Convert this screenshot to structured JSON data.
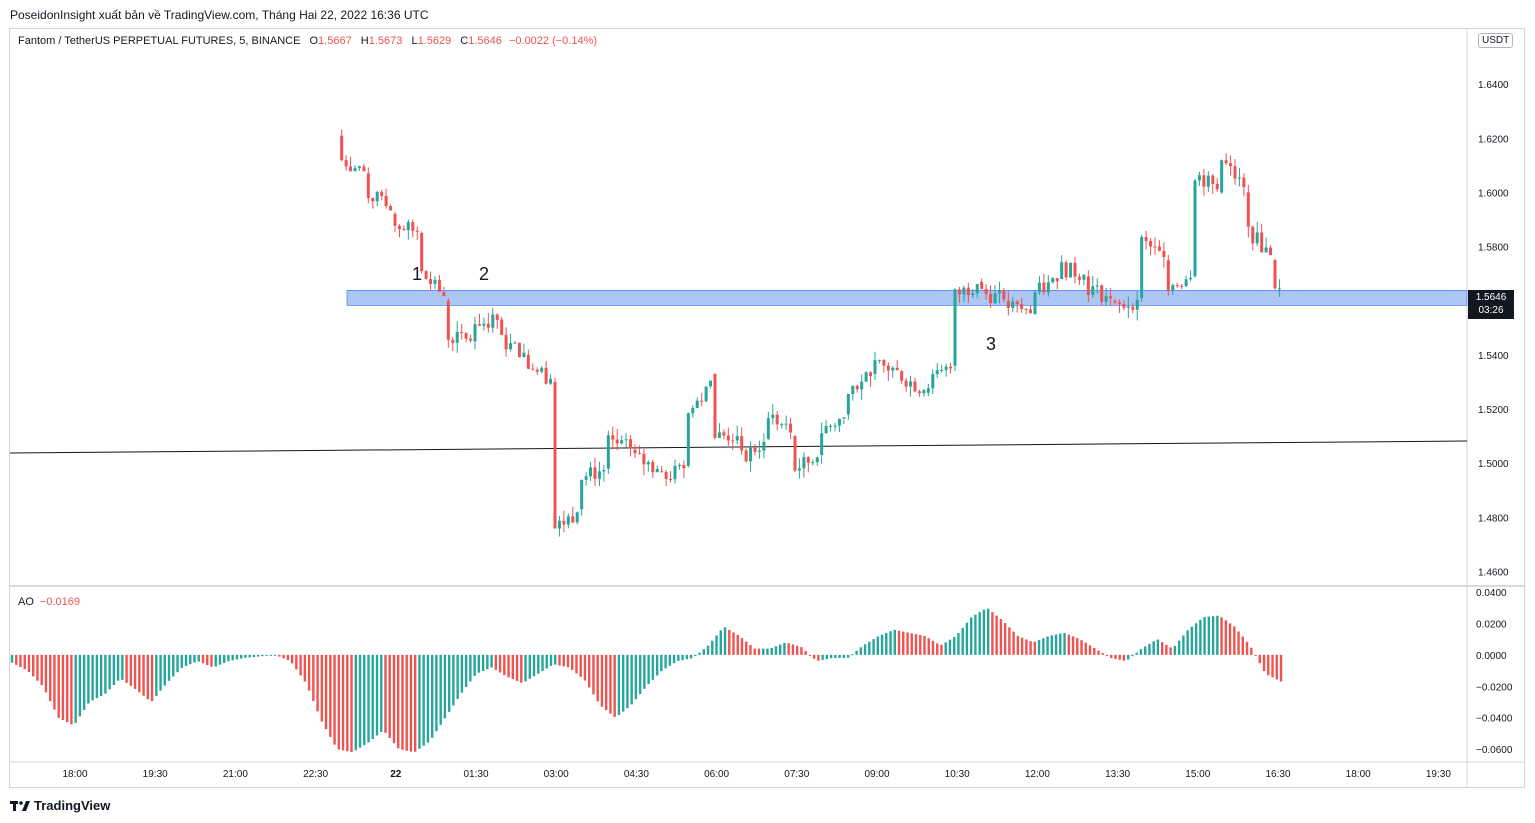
{
  "header": {
    "publisher_line": "PoseidonInsight xuất bản về TradingView.com, Tháng Hai 22, 2022 16:36 UTC"
  },
  "legend": {
    "symbol": "Fantom / TetherUS PERPETUAL FUTURES, 5, BINANCE",
    "open_label": "O",
    "open": "1.5667",
    "high_label": "H",
    "high": "1.5673",
    "low_label": "L",
    "low": "1.5629",
    "close_label": "C",
    "close": "1.5646",
    "change": "−0.0022 (−0.14%)"
  },
  "price_axis": {
    "unit": "USDT",
    "current_price": "1.5646",
    "countdown": "03:26"
  },
  "annotations": [
    "1",
    "2",
    "3"
  ],
  "indicator": {
    "name": "AO",
    "value": "−0.0169"
  },
  "branding": {
    "logo_text": "TradingView"
  },
  "colors": {
    "up": "#26a69a",
    "down": "#ef5350",
    "zone_fill": "#90b4f0",
    "zone_border": "#2962ff",
    "trendline": "#131722"
  },
  "chart_data": [
    {
      "type": "candlestick",
      "title": "Fantom / TetherUS PERPETUAL FUTURES, 5, BINANCE",
      "x_ticks": [
        "18:00",
        "19:30",
        "21:00",
        "22:30",
        "22",
        "01:30",
        "03:00",
        "04:30",
        "06:00",
        "07:30",
        "09:00",
        "10:30",
        "12:00",
        "13:30",
        "15:00",
        "16:30",
        "18:00",
        "19:30"
      ],
      "y_ticks": [
        "1.6400",
        "1.6200",
        "1.6000",
        "1.5800",
        "1.5600",
        "1.5400",
        "1.5200",
        "1.5000",
        "1.4800",
        "1.4600"
      ],
      "ylim": [
        1.455,
        1.66
      ],
      "series": [
        {
          "values": [
            {
              "t": "23:00",
              "o": 1.621,
              "h": 1.64,
              "l": 1.61,
              "c": 1.612
            },
            {
              "t": "23:30",
              "o": 1.607,
              "h": 1.612,
              "l": 1.596,
              "c": 1.6
            },
            {
              "t": "00:00",
              "o": 1.592,
              "h": 1.596,
              "l": 1.581,
              "c": 1.588
            },
            {
              "t": "00:30",
              "o": 1.585,
              "h": 1.59,
              "l": 1.566,
              "c": 1.57
            },
            {
              "t": "01:00",
              "o": 1.56,
              "h": 1.566,
              "l": 1.537,
              "c": 1.547
            },
            {
              "t": "01:30",
              "o": 1.545,
              "h": 1.562,
              "l": 1.536,
              "c": 1.552
            },
            {
              "t": "02:00",
              "o": 1.553,
              "h": 1.563,
              "l": 1.541,
              "c": 1.545
            },
            {
              "t": "02:30",
              "o": 1.54,
              "h": 1.556,
              "l": 1.523,
              "c": 1.537
            },
            {
              "t": "03:00",
              "o": 1.53,
              "h": 1.533,
              "l": 1.473,
              "c": 1.476
            },
            {
              "t": "03:30",
              "o": 1.483,
              "h": 1.5,
              "l": 1.479,
              "c": 1.495
            },
            {
              "t": "04:00",
              "o": 1.498,
              "h": 1.512,
              "l": 1.49,
              "c": 1.508
            },
            {
              "t": "04:30",
              "o": 1.505,
              "h": 1.51,
              "l": 1.493,
              "c": 1.502
            },
            {
              "t": "05:00",
              "o": 1.497,
              "h": 1.504,
              "l": 1.489,
              "c": 1.494
            },
            {
              "t": "05:30",
              "o": 1.499,
              "h": 1.526,
              "l": 1.497,
              "c": 1.518
            },
            {
              "t": "06:00",
              "o": 1.533,
              "h": 1.54,
              "l": 1.505,
              "c": 1.51
            },
            {
              "t": "06:30",
              "o": 1.51,
              "h": 1.522,
              "l": 1.497,
              "c": 1.502
            },
            {
              "t": "07:00",
              "o": 1.509,
              "h": 1.522,
              "l": 1.506,
              "c": 1.518
            },
            {
              "t": "07:30",
              "o": 1.51,
              "h": 1.516,
              "l": 1.495,
              "c": 1.498
            },
            {
              "t": "08:00",
              "o": 1.503,
              "h": 1.514,
              "l": 1.5,
              "c": 1.512
            },
            {
              "t": "08:30",
              "o": 1.518,
              "h": 1.532,
              "l": 1.514,
              "c": 1.528
            },
            {
              "t": "09:00",
              "o": 1.533,
              "h": 1.544,
              "l": 1.528,
              "c": 1.536
            },
            {
              "t": "09:30",
              "o": 1.534,
              "h": 1.541,
              "l": 1.525,
              "c": 1.532
            },
            {
              "t": "10:00",
              "o": 1.526,
              "h": 1.535,
              "l": 1.518,
              "c": 1.53
            },
            {
              "t": "10:30",
              "o": 1.536,
              "h": 1.566,
              "l": 1.534,
              "c": 1.562
            },
            {
              "t": "11:00",
              "o": 1.567,
              "h": 1.576,
              "l": 1.558,
              "c": 1.563
            },
            {
              "t": "11:30",
              "o": 1.56,
              "h": 1.568,
              "l": 1.553,
              "c": 1.558
            },
            {
              "t": "12:00",
              "o": 1.555,
              "h": 1.568,
              "l": 1.543,
              "c": 1.563
            },
            {
              "t": "12:30",
              "o": 1.568,
              "h": 1.576,
              "l": 1.565,
              "c": 1.572
            },
            {
              "t": "13:00",
              "o": 1.569,
              "h": 1.574,
              "l": 1.56,
              "c": 1.565
            },
            {
              "t": "13:30",
              "o": 1.56,
              "h": 1.568,
              "l": 1.554,
              "c": 1.557
            },
            {
              "t": "14:00",
              "o": 1.561,
              "h": 1.585,
              "l": 1.559,
              "c": 1.582
            },
            {
              "t": "14:30",
              "o": 1.575,
              "h": 1.579,
              "l": 1.561,
              "c": 1.566
            },
            {
              "t": "15:00",
              "o": 1.569,
              "h": 1.612,
              "l": 1.566,
              "c": 1.607
            },
            {
              "t": "15:30",
              "o": 1.6,
              "h": 1.616,
              "l": 1.596,
              "c": 1.612
            },
            {
              "t": "16:00",
              "o": 1.6,
              "h": 1.604,
              "l": 1.58,
              "c": 1.586
            },
            {
              "t": "16:30",
              "o": 1.575,
              "h": 1.578,
              "l": 1.559,
              "c": 1.5646
            }
          ]
        }
      ]
    },
    {
      "type": "bar",
      "title": "AO",
      "y_ticks": [
        "0.0400",
        "0.0200",
        "0.0000",
        "−0.0200",
        "−0.0400",
        "−0.0600"
      ],
      "ylim": [
        -0.065,
        0.04
      ],
      "series": [
        {
          "name": "AO",
          "values": [
            -0.005,
            -0.01,
            -0.02,
            -0.04,
            -0.045,
            -0.03,
            -0.025,
            -0.015,
            -0.022,
            -0.03,
            -0.018,
            -0.008,
            -0.004,
            -0.008,
            -0.004,
            -0.002,
            -0.001,
            0.0,
            -0.004,
            -0.018,
            -0.042,
            -0.06,
            -0.062,
            -0.056,
            -0.048,
            -0.06,
            -0.062,
            -0.055,
            -0.04,
            -0.025,
            -0.012,
            -0.008,
            -0.014,
            -0.018,
            -0.012,
            -0.006,
            -0.008,
            -0.016,
            -0.032,
            -0.04,
            -0.032,
            -0.02,
            -0.01,
            -0.004,
            -0.002,
            0.006,
            0.018,
            0.012,
            0.004,
            0.004,
            0.008,
            0.005,
            -0.004,
            -0.002,
            -0.002,
            0.006,
            0.012,
            0.016,
            0.014,
            0.012,
            0.006,
            0.012,
            0.024,
            0.03,
            0.022,
            0.012,
            0.008,
            0.012,
            0.014,
            0.01,
            0.004,
            -0.002,
            -0.004,
            0.004,
            0.01,
            0.004,
            0.016,
            0.024,
            0.025,
            0.018,
            0.006,
            -0.012,
            -0.017
          ]
        }
      ]
    }
  ]
}
